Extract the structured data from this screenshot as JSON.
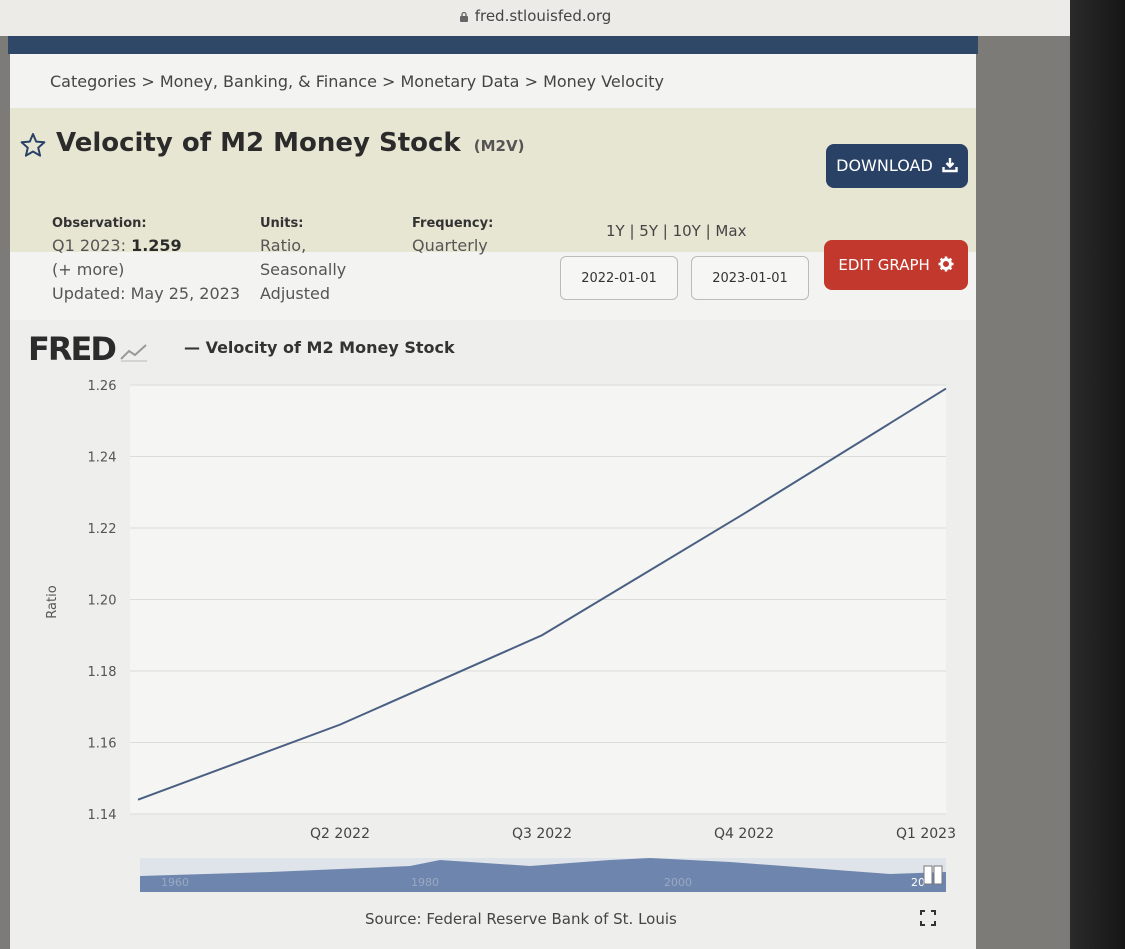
{
  "browser": {
    "url": "fred.stlouisfed.org"
  },
  "breadcrumb": "Categories > Money, Banking, & Finance > Monetary Data > Money Velocity",
  "header": {
    "title": "Velocity of M2 Money Stock",
    "series_code": "(M2V)",
    "download_label": "DOWNLOAD",
    "edit_label": "EDIT GRAPH"
  },
  "meta": {
    "observation_label": "Observation:",
    "observation_period": "Q1 2023:",
    "observation_value": "1.259",
    "more": "(+ more)",
    "updated": "Updated: May 25, 2023",
    "units_label": "Units:",
    "units_line1": "Ratio,",
    "units_line2": "Seasonally",
    "units_line3": "Adjusted",
    "frequency_label": "Frequency:",
    "frequency_value": "Quarterly"
  },
  "range_links": "1Y | 5Y | 10Y | Max",
  "date_range": {
    "start": "2022-01-01",
    "end": "2023-01-01"
  },
  "graph": {
    "logo": "FRED",
    "legend_label": "— Velocity of M2 Money Stock",
    "source": "Source: Federal Reserve Bank of St. Louis"
  },
  "colors": {
    "line": "#4a5f82",
    "download": "#2a4166",
    "edit": "#c2382c"
  },
  "chart_data": {
    "type": "line",
    "title": "",
    "ylabel": "Ratio",
    "x": [
      "2022-01-01",
      "2022-04-01",
      "2022-07-01",
      "2022-10-01",
      "2023-01-01"
    ],
    "x_tick_labels": [
      "Q2 2022",
      "Q3 2022",
      "Q4 2022",
      "Q1 2023"
    ],
    "y_ticks": [
      "1.26",
      "1.24",
      "1.22",
      "1.20",
      "1.18",
      "1.16",
      "1.14"
    ],
    "ylim": [
      1.14,
      1.26
    ],
    "grid": true,
    "series": [
      {
        "name": "Velocity of M2 Money Stock",
        "values": [
          1.144,
          1.165,
          1.19,
          1.224,
          1.259
        ]
      }
    ],
    "navigator_labels": [
      "1960",
      "1980",
      "2000",
      "20"
    ]
  }
}
